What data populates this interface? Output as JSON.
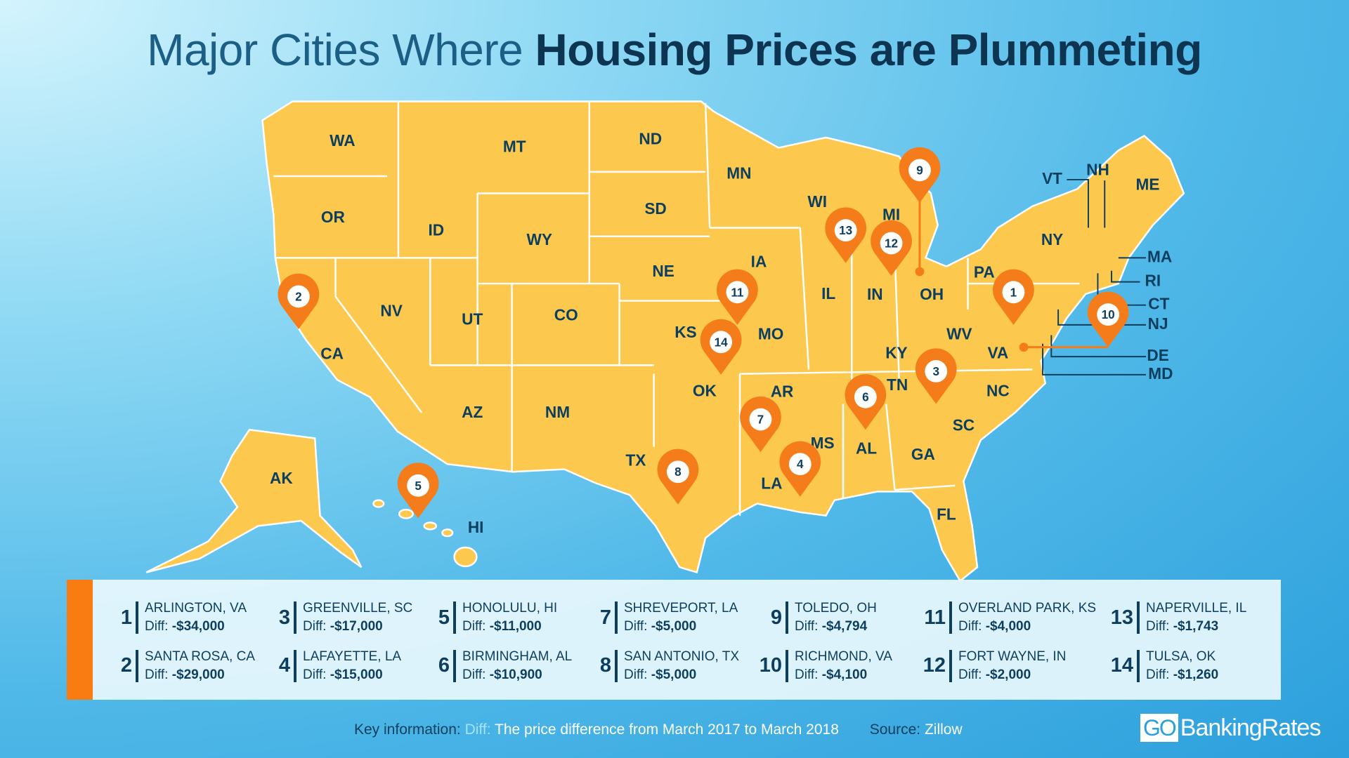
{
  "title": {
    "light": "Major Cities Where",
    "bold": "Housing Prices are Plummeting"
  },
  "colors": {
    "map_fill": "#fcc94e",
    "pin": "#f57c1a",
    "text": "#0d3e5e",
    "accent_bar": "#f97c12"
  },
  "states": [
    "WA",
    "MT",
    "ND",
    "MN",
    "OR",
    "ID",
    "WY",
    "SD",
    "NE",
    "IA",
    "WI",
    "MI",
    "NV",
    "UT",
    "CO",
    "KS",
    "MO",
    "IL",
    "IN",
    "OH",
    "PA",
    "NY",
    "CA",
    "AZ",
    "NM",
    "OK",
    "AR",
    "KY",
    "WV",
    "VA",
    "TN",
    "NC",
    "SC",
    "MS",
    "AL",
    "GA",
    "LA",
    "TX",
    "FL",
    "AK",
    "HI",
    "ME",
    "VT",
    "NH",
    "MA",
    "RI",
    "CT",
    "NJ",
    "DE",
    "MD"
  ],
  "pins": [
    "1",
    "2",
    "3",
    "4",
    "5",
    "6",
    "7",
    "8",
    "9",
    "10",
    "11",
    "12",
    "13",
    "14"
  ],
  "cities": [
    {
      "rank": "1",
      "name": "ARLINGTON, VA",
      "diff_label": "Diff:",
      "diff": "-$34,000"
    },
    {
      "rank": "2",
      "name": "SANTA ROSA, CA",
      "diff_label": "Diff:",
      "diff": "-$29,000"
    },
    {
      "rank": "3",
      "name": "GREENVILLE, SC",
      "diff_label": "Diff:",
      "diff": "-$17,000"
    },
    {
      "rank": "4",
      "name": "LAFAYETTE, LA",
      "diff_label": "Diff:",
      "diff": "-$15,000"
    },
    {
      "rank": "5",
      "name": "HONOLULU, HI",
      "diff_label": "Diff:",
      "diff": "-$11,000"
    },
    {
      "rank": "6",
      "name": "BIRMINGHAM, AL",
      "diff_label": "Diff:",
      "diff": "-$10,900"
    },
    {
      "rank": "7",
      "name": "SHREVEPORT, LA",
      "diff_label": "Diff:",
      "diff": "-$5,000"
    },
    {
      "rank": "8",
      "name": "SAN ANTONIO, TX",
      "diff_label": "Diff:",
      "diff": "-$5,000"
    },
    {
      "rank": "9",
      "name": "TOLEDO, OH",
      "diff_label": "Diff:",
      "diff": "-$4,794"
    },
    {
      "rank": "10",
      "name": "RICHMOND, VA",
      "diff_label": "Diff:",
      "diff": "-$4,100"
    },
    {
      "rank": "11",
      "name": "OVERLAND PARK, KS",
      "diff_label": "Diff:",
      "diff": "-$4,000"
    },
    {
      "rank": "12",
      "name": "FORT WAYNE, IN",
      "diff_label": "Diff:",
      "diff": "-$2,000"
    },
    {
      "rank": "13",
      "name": "NAPERVILLE, IL",
      "diff_label": "Diff:",
      "diff": "-$1,743"
    },
    {
      "rank": "14",
      "name": "TULSA, OK",
      "diff_label": "Diff:",
      "diff": "-$1,260"
    }
  ],
  "footer": {
    "key_label": "Key information:",
    "diff_term": "Diff:",
    "diff_def": "The price difference from March 2017 to March 2018",
    "source_label": "Source:",
    "source": "Zillow"
  },
  "logo": {
    "go": "GO",
    "name": "BankingRates"
  }
}
